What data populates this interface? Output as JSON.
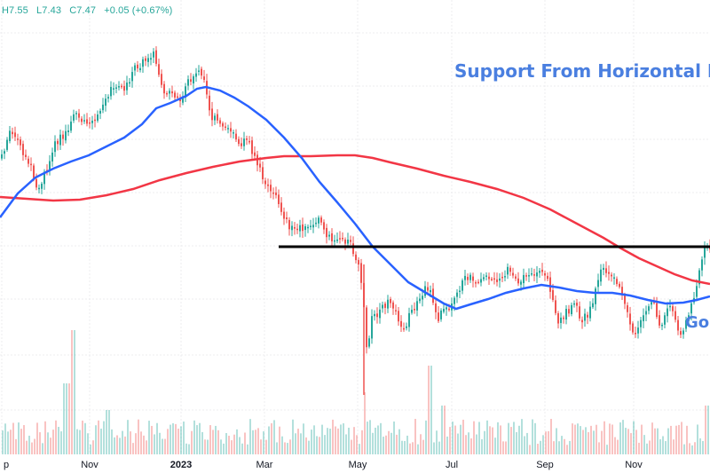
{
  "header": {
    "high": "H7.55",
    "low": "L7.43",
    "close": "C7.47",
    "change": "+0.05 (+0.67%)",
    "color": "#26a69a"
  },
  "annotations": {
    "support": "Support From Horizontal Lin",
    "golden": "Go",
    "color": "#4a7fe0"
  },
  "chart_data": {
    "type": "line",
    "series_type": "candlestick",
    "xlabel": "",
    "ylabel": "",
    "grid": true,
    "x_tick_labels": [
      "p",
      "Nov",
      "2023",
      "Mar",
      "May",
      "Jul",
      "Sep",
      "Nov"
    ],
    "bold_tick": "2023",
    "horizontal_line": {
      "color": "#000000"
    },
    "series": [
      {
        "kind": "price",
        "color_up": "#26a69a",
        "color_down": "#ef5350"
      },
      {
        "kind": "moving-average-short",
        "color": "#2962ff"
      },
      {
        "kind": "moving-average-long",
        "color": "#f23645"
      },
      {
        "kind": "volume",
        "color_up": "#26a69a",
        "color_down": "#ef5350"
      }
    ]
  }
}
